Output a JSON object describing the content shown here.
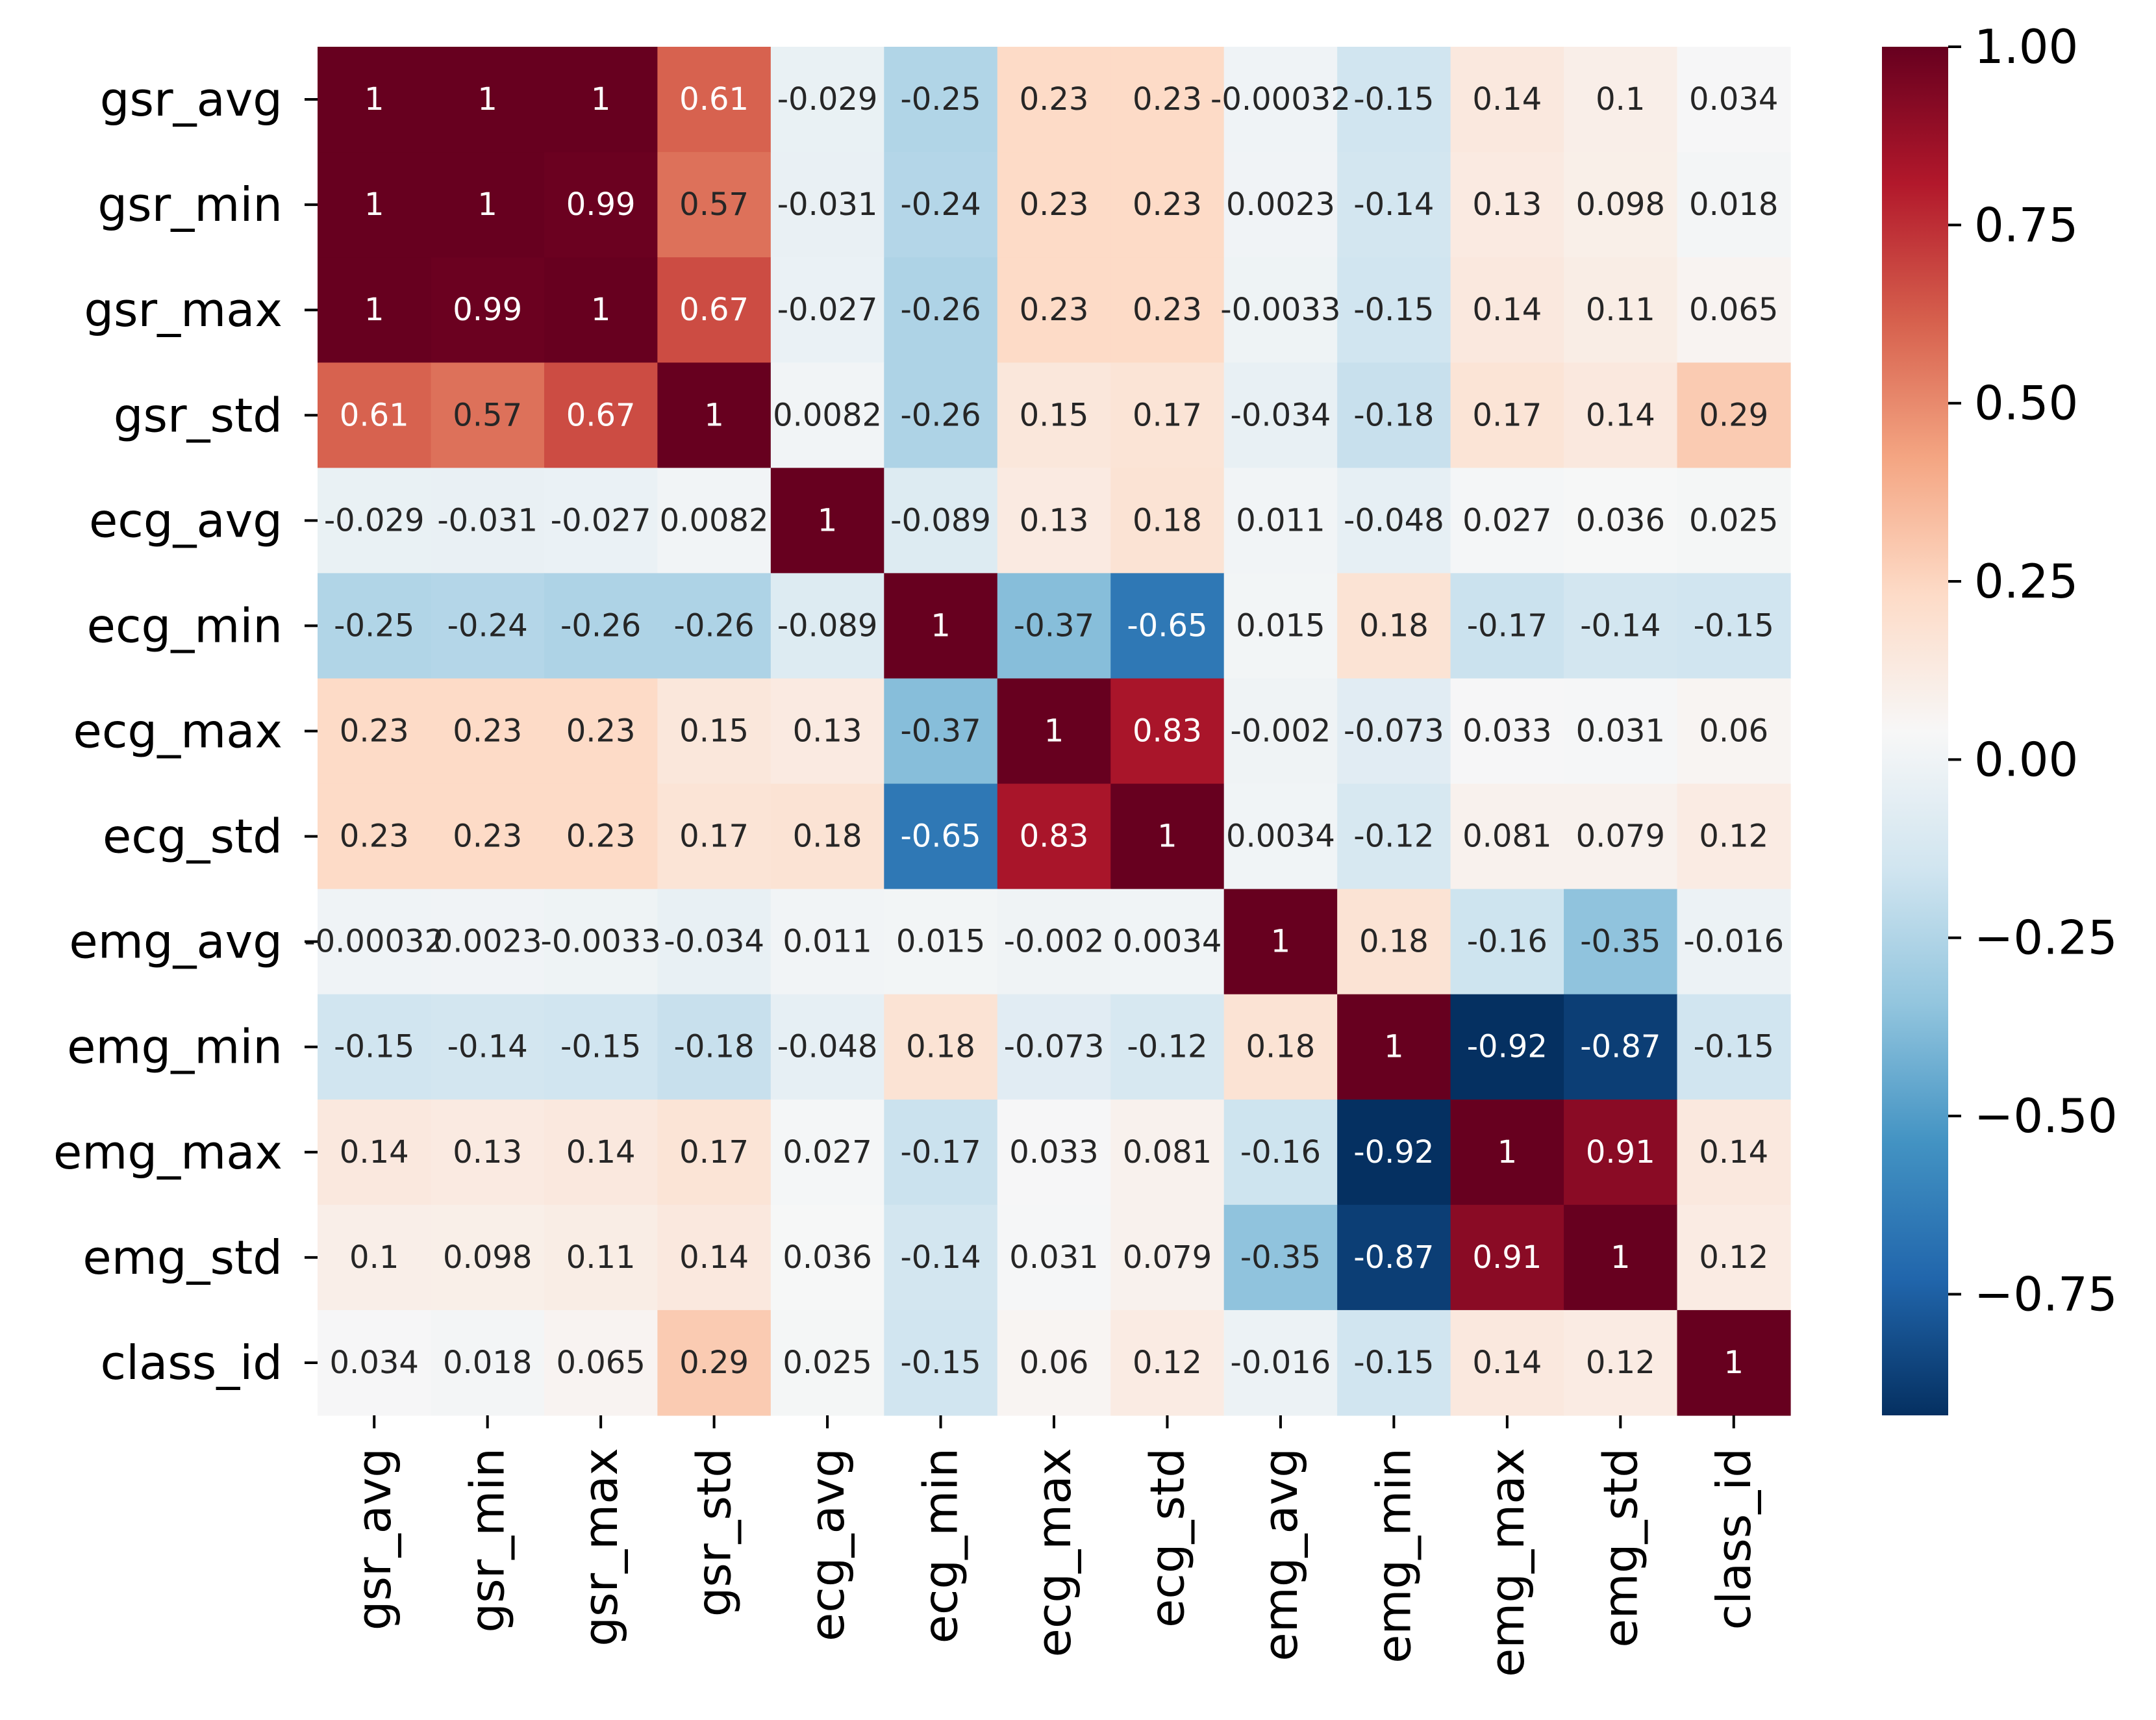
{
  "chart_data": {
    "type": "heatmap",
    "title": "",
    "xlabel": "",
    "ylabel": "",
    "colormap": "RdBu_r",
    "vmin": -0.92,
    "vmax": 1.0,
    "labels": [
      "gsr_avg",
      "gsr_min",
      "gsr_max",
      "gsr_std",
      "ecg_avg",
      "ecg_min",
      "ecg_max",
      "ecg_std",
      "emg_avg",
      "emg_min",
      "emg_max",
      "emg_std",
      "class_id"
    ],
    "values": [
      [
        1,
        1,
        1,
        0.61,
        -0.029,
        -0.25,
        0.23,
        0.23,
        -0.00032,
        -0.15,
        0.14,
        0.1,
        0.034
      ],
      [
        1,
        1,
        0.99,
        0.57,
        -0.031,
        -0.24,
        0.23,
        0.23,
        0.0023,
        -0.14,
        0.13,
        0.098,
        0.018
      ],
      [
        1,
        0.99,
        1,
        0.67,
        -0.027,
        -0.26,
        0.23,
        0.23,
        -0.0033,
        -0.15,
        0.14,
        0.11,
        0.065
      ],
      [
        0.61,
        0.57,
        0.67,
        1,
        0.0082,
        -0.26,
        0.15,
        0.17,
        -0.034,
        -0.18,
        0.17,
        0.14,
        0.29
      ],
      [
        -0.029,
        -0.031,
        -0.027,
        0.0082,
        1,
        -0.089,
        0.13,
        0.18,
        0.011,
        -0.048,
        0.027,
        0.036,
        0.025
      ],
      [
        -0.25,
        -0.24,
        -0.26,
        -0.26,
        -0.089,
        1,
        -0.37,
        -0.65,
        0.015,
        0.18,
        -0.17,
        -0.14,
        -0.15
      ],
      [
        0.23,
        0.23,
        0.23,
        0.15,
        0.13,
        -0.37,
        1,
        0.83,
        -0.002,
        -0.073,
        0.033,
        0.031,
        0.06
      ],
      [
        0.23,
        0.23,
        0.23,
        0.17,
        0.18,
        -0.65,
        0.83,
        1,
        0.0034,
        -0.12,
        0.081,
        0.079,
        0.12
      ],
      [
        -0.00032,
        0.0023,
        -0.0033,
        -0.034,
        0.011,
        0.015,
        -0.002,
        0.0034,
        1,
        0.18,
        -0.16,
        -0.35,
        -0.016
      ],
      [
        -0.15,
        -0.14,
        -0.15,
        -0.18,
        -0.048,
        0.18,
        -0.073,
        -0.12,
        0.18,
        1,
        -0.92,
        -0.87,
        -0.15
      ],
      [
        0.14,
        0.13,
        0.14,
        0.17,
        0.027,
        -0.17,
        0.033,
        0.081,
        -0.16,
        -0.92,
        1,
        0.91,
        0.14
      ],
      [
        0.1,
        0.098,
        0.11,
        0.14,
        0.036,
        -0.14,
        0.031,
        0.079,
        -0.35,
        -0.87,
        0.91,
        1,
        0.12
      ],
      [
        0.034,
        0.018,
        0.065,
        0.29,
        0.025,
        -0.15,
        0.06,
        0.12,
        -0.016,
        -0.15,
        0.14,
        0.12,
        1
      ]
    ],
    "cell_text": [
      [
        "1",
        "1",
        "1",
        "0.61",
        "-0.029",
        "-0.25",
        "0.23",
        "0.23",
        "-0.00032",
        "-0.15",
        "0.14",
        "0.1",
        "0.034"
      ],
      [
        "1",
        "1",
        "0.99",
        "0.57",
        "-0.031",
        "-0.24",
        "0.23",
        "0.23",
        "0.0023",
        "-0.14",
        "0.13",
        "0.098",
        "0.018"
      ],
      [
        "1",
        "0.99",
        "1",
        "0.67",
        "-0.027",
        "-0.26",
        "0.23",
        "0.23",
        "-0.0033",
        "-0.15",
        "0.14",
        "0.11",
        "0.065"
      ],
      [
        "0.61",
        "0.57",
        "0.67",
        "1",
        "0.0082",
        "-0.26",
        "0.15",
        "0.17",
        "-0.034",
        "-0.18",
        "0.17",
        "0.14",
        "0.29"
      ],
      [
        "-0.029",
        "-0.031",
        "-0.027",
        "0.0082",
        "1",
        "-0.089",
        "0.13",
        "0.18",
        "0.011",
        "-0.048",
        "0.027",
        "0.036",
        "0.025"
      ],
      [
        "-0.25",
        "-0.24",
        "-0.26",
        "-0.26",
        "-0.089",
        "1",
        "-0.37",
        "-0.65",
        "0.015",
        "0.18",
        "-0.17",
        "-0.14",
        "-0.15"
      ],
      [
        "0.23",
        "0.23",
        "0.23",
        "0.15",
        "0.13",
        "-0.37",
        "1",
        "0.83",
        "-0.002",
        "-0.073",
        "0.033",
        "0.031",
        "0.06"
      ],
      [
        "0.23",
        "0.23",
        "0.23",
        "0.17",
        "0.18",
        "-0.65",
        "0.83",
        "1",
        "0.0034",
        "-0.12",
        "0.081",
        "0.079",
        "0.12"
      ],
      [
        "-0.00032",
        "0.0023",
        "-0.0033",
        "-0.034",
        "0.011",
        "0.015",
        "-0.002",
        "0.0034",
        "1",
        "0.18",
        "-0.16",
        "-0.35",
        "-0.016"
      ],
      [
        "-0.15",
        "-0.14",
        "-0.15",
        "-0.18",
        "-0.048",
        "0.18",
        "-0.073",
        "-0.12",
        "0.18",
        "1",
        "-0.92",
        "-0.87",
        "-0.15"
      ],
      [
        "0.14",
        "0.13",
        "0.14",
        "0.17",
        "0.027",
        "-0.17",
        "0.033",
        "0.081",
        "-0.16",
        "-0.92",
        "1",
        "0.91",
        "0.14"
      ],
      [
        "0.1",
        "0.098",
        "0.11",
        "0.14",
        "0.036",
        "-0.14",
        "0.031",
        "0.079",
        "-0.35",
        "-0.87",
        "0.91",
        "1",
        "0.12"
      ],
      [
        "0.034",
        "0.018",
        "0.065",
        "0.29",
        "0.025",
        "-0.15",
        "0.06",
        "0.12",
        "-0.016",
        "-0.15",
        "0.14",
        "0.12",
        "1"
      ]
    ],
    "colorbar": {
      "ticks": [
        1.0,
        0.75,
        0.5,
        0.25,
        0.0,
        -0.25,
        -0.5,
        -0.75
      ],
      "tick_labels": [
        "1.00",
        "0.75",
        "0.50",
        "0.25",
        "0.00",
        "−0.25",
        "−0.50",
        "−0.75"
      ]
    }
  }
}
